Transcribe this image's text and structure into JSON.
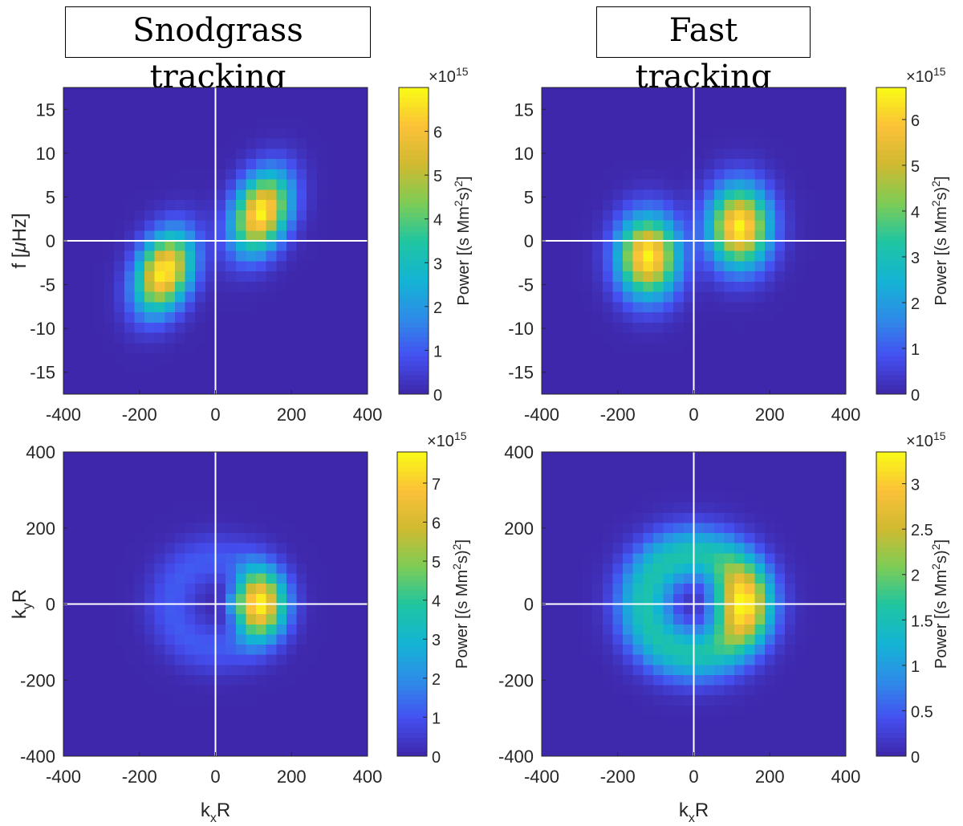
{
  "columns": [
    {
      "title": "Snodgrass tracking"
    },
    {
      "title": "Fast tracking"
    }
  ],
  "colormap": [
    "#3e26a8",
    "#4450f0",
    "#2e8de8",
    "#12b4d3",
    "#20c6a0",
    "#7ecc55",
    "#d0ba30",
    "#fbc138",
    "#f9fb15"
  ],
  "line_color": "#ffffff",
  "chart_data": [
    {
      "type": "heatmap",
      "panel": "top-left",
      "xlabel": "",
      "ylabel": "f [μHz]",
      "xlim": [
        -400,
        400
      ],
      "ylim": [
        -17.5,
        17.5
      ],
      "xticks": [
        -400,
        -200,
        0,
        200,
        400
      ],
      "yticks": [
        -15,
        -10,
        -5,
        0,
        5,
        10,
        15
      ],
      "colorbar": {
        "label": "Power [(s Mm²s)²]",
        "exponent": "×10¹⁵",
        "ticks": [
          0,
          1,
          2,
          3,
          4,
          5,
          6
        ],
        "cmax": 7.0
      },
      "grid": {
        "nx": 30,
        "ny": 30
      },
      "blobs": [
        {
          "x": 120,
          "y": 3.2,
          "sx": 52,
          "sy": 3.0,
          "peak": 6.9,
          "skew": 0.018
        },
        {
          "x": -135,
          "y": -3.6,
          "sx": 52,
          "sy": 3.0,
          "peak": 6.9,
          "skew": 0.018
        }
      ]
    },
    {
      "type": "heatmap",
      "panel": "top-right",
      "xlabel": "",
      "ylabel": "",
      "xlim": [
        -400,
        400
      ],
      "ylim": [
        -17.5,
        17.5
      ],
      "xticks": [
        -400,
        -200,
        0,
        200,
        400
      ],
      "yticks": [
        -15,
        -10,
        -5,
        0,
        5,
        10,
        15
      ],
      "colorbar": {
        "label": "Power [(s Mm²s)²]",
        "exponent": "×10¹⁵",
        "ticks": [
          0,
          1,
          2,
          3,
          4,
          5,
          6
        ],
        "cmax": 6.7
      },
      "grid": {
        "nx": 30,
        "ny": 30
      },
      "blobs": [
        {
          "x": 120,
          "y": 1.6,
          "sx": 55,
          "sy": 3.2,
          "peak": 6.6,
          "skew": 0
        },
        {
          "x": -120,
          "y": -1.8,
          "sx": 55,
          "sy": 3.2,
          "peak": 6.6,
          "skew": 0
        }
      ]
    },
    {
      "type": "heatmap",
      "panel": "bottom-left",
      "xlabel": "kₓR",
      "ylabel": "k_yR",
      "xlim": [
        -400,
        400
      ],
      "ylim": [
        -400,
        400
      ],
      "xticks": [
        -400,
        -200,
        0,
        200,
        400
      ],
      "yticks": [
        -400,
        -200,
        0,
        200,
        400
      ],
      "colorbar": {
        "label": "Power [(s Mm²s)²]",
        "exponent": "×10¹⁵",
        "ticks": [
          0,
          1,
          2,
          3,
          4,
          5,
          6,
          7
        ],
        "cmax": 7.8
      },
      "grid": {
        "nx": 30,
        "ny": 30
      },
      "ring": {
        "r0": 115,
        "width": 48,
        "base": 1.1,
        "crescent": 6.6,
        "power": 3.5
      }
    },
    {
      "type": "heatmap",
      "panel": "bottom-right",
      "xlabel": "kₓR",
      "ylabel": "",
      "xlim": [
        -400,
        400
      ],
      "ylim": [
        -400,
        400
      ],
      "xticks": [
        -400,
        -200,
        0,
        200,
        400
      ],
      "yticks": [
        -400,
        -200,
        0,
        200,
        400
      ],
      "colorbar": {
        "label": "Power [(s Mm²s)²]",
        "exponent": "×10¹⁵",
        "ticks": [
          0,
          0.5,
          1,
          1.5,
          2,
          2.5,
          3
        ],
        "cmax": 3.35
      },
      "grid": {
        "nx": 30,
        "ny": 30
      },
      "ring": {
        "r0": 130,
        "width": 52,
        "base": 1.55,
        "crescent": 1.8,
        "power": 3
      }
    }
  ]
}
